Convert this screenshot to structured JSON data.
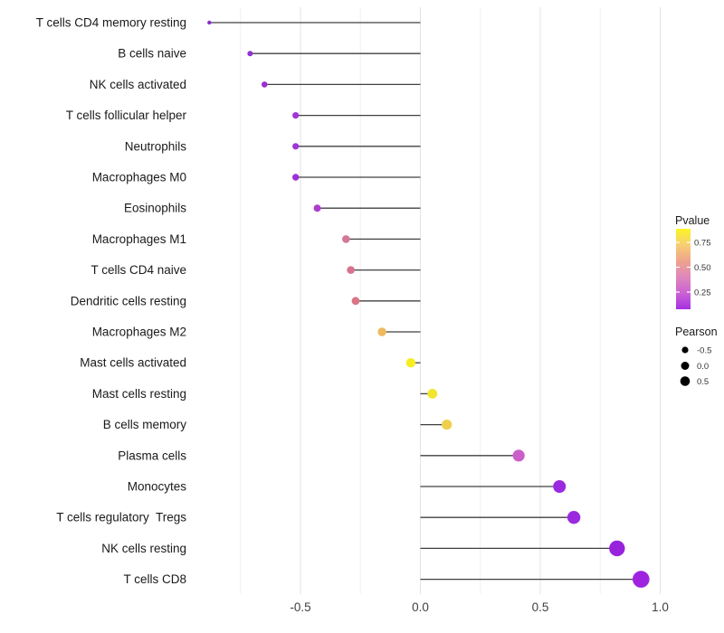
{
  "chart_data": {
    "type": "scatter",
    "variant": "lollipop",
    "orientation": "horizontal",
    "title": "",
    "xlabel": "",
    "ylabel": "",
    "baseline_x": 0,
    "x_axis": {
      "tick_values": [
        -0.5,
        0.0,
        0.5,
        1.0
      ],
      "tick_labels": [
        "-0.5",
        "0.0",
        "0.5",
        "1.0"
      ],
      "range": [
        -0.97,
        1.01
      ]
    },
    "grid": {
      "major_x": [
        -0.5,
        0.0,
        0.5,
        1.0
      ],
      "minor_x": [
        -0.75,
        -0.25,
        0.25,
        0.75
      ],
      "horizontal_lines": false
    },
    "points": [
      {
        "label": "T cells CD4 memory resting",
        "pearson": -0.88,
        "dot_color": "#8C2BD1",
        "dot_radius": 2.2
      },
      {
        "label": "B cells naive",
        "pearson": -0.71,
        "dot_color": "#9230D3",
        "dot_radius": 3.0
      },
      {
        "label": "NK cells activated",
        "pearson": -0.65,
        "dot_color": "#9A2ED6",
        "dot_radius": 3.3
      },
      {
        "label": "T cells follicular helper",
        "pearson": -0.52,
        "dot_color": "#A135DA",
        "dot_radius": 3.6
      },
      {
        "label": "Neutrophils",
        "pearson": -0.52,
        "dot_color": "#A135DA",
        "dot_radius": 3.6
      },
      {
        "label": "Macrophages M0",
        "pearson": -0.52,
        "dot_color": "#9E2FD7",
        "dot_radius": 3.7
      },
      {
        "label": "Eosinophils",
        "pearson": -0.43,
        "dot_color": "#AE3CCE",
        "dot_radius": 4.0
      },
      {
        "label": "Macrophages M1",
        "pearson": -0.31,
        "dot_color": "#D4789B",
        "dot_radius": 4.3
      },
      {
        "label": "T cells CD4 naive",
        "pearson": -0.29,
        "dot_color": "#D6748D",
        "dot_radius": 4.3
      },
      {
        "label": "Dendritic cells resting",
        "pearson": -0.27,
        "dot_color": "#DB7583",
        "dot_radius": 4.4
      },
      {
        "label": "Macrophages M2",
        "pearson": -0.16,
        "dot_color": "#EEB95F",
        "dot_radius": 4.7
      },
      {
        "label": "Mast cells activated",
        "pearson": -0.04,
        "dot_color": "#F7ED21",
        "dot_radius": 5.2
      },
      {
        "label": "Mast cells resting",
        "pearson": 0.05,
        "dot_color": "#F2E52C",
        "dot_radius": 5.4
      },
      {
        "label": "B cells memory",
        "pearson": 0.11,
        "dot_color": "#EFCF4B",
        "dot_radius": 5.6
      },
      {
        "label": "Plasma cells",
        "pearson": 0.41,
        "dot_color": "#CB5FC8",
        "dot_radius": 6.6
      },
      {
        "label": "Monocytes",
        "pearson": 0.58,
        "dot_color": "#9A2ADF",
        "dot_radius": 7.0
      },
      {
        "label": "T cells regulatory  Tregs",
        "pearson": 0.64,
        "dot_color": "#9A2ADF",
        "dot_radius": 7.2
      },
      {
        "label": "NK cells resting",
        "pearson": 0.82,
        "dot_color": "#9823DC",
        "dot_radius": 8.7
      },
      {
        "label": "T cells CD8",
        "pearson": 0.92,
        "dot_color": "#9F22E1",
        "dot_radius": 9.3
      }
    ],
    "legend_position": "right"
  },
  "legend": {
    "pvalue": {
      "title": "Pvalue",
      "tick_labels": [
        "0.75",
        "0.50",
        "0.25"
      ],
      "gradient_top_to_bottom": [
        "#FBF524",
        "#F7CE74",
        "#EFA38D",
        "#DE87BC",
        "#CB63D3",
        "#A72FE3"
      ]
    },
    "pearson": {
      "title": "Pearson",
      "dot_color": "#000000",
      "items": [
        {
          "label": "-0.5",
          "radius": 3.6
        },
        {
          "label": "0.0",
          "radius": 4.5
        },
        {
          "label": "0.5",
          "radius": 5.3
        }
      ]
    }
  },
  "style": {
    "background": "#FFFFFF",
    "stem_color": "#404040",
    "grid_major_color": "#E3E3E3",
    "grid_minor_color": "#F0F0F0",
    "axis_text_color": "#404040",
    "y_label_color": "#1A1A1A"
  }
}
